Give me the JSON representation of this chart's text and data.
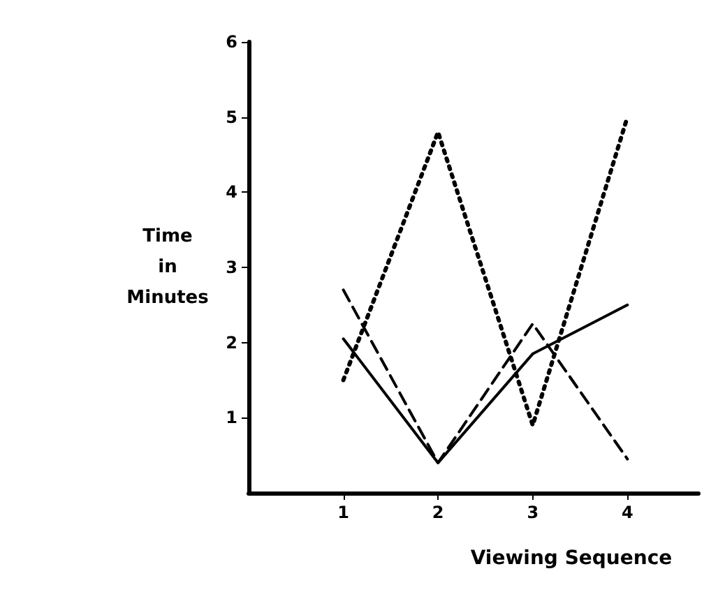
{
  "chart_data": {
    "type": "line",
    "xlabel": "Viewing Sequence",
    "ylabel": "Time\nin\nMinutes",
    "x": [
      1,
      2,
      3,
      4
    ],
    "xlim": [
      0,
      4.75
    ],
    "xticks": [
      1,
      2,
      3,
      4
    ],
    "ylim": [
      0,
      6
    ],
    "yticks": [
      1,
      2,
      3,
      4,
      5,
      6
    ],
    "marker": "none",
    "grid": false,
    "series": [
      {
        "color": "#000000",
        "line_style": "solid",
        "values": [
          2.05,
          0.4,
          1.85,
          2.5
        ]
      },
      {
        "color": "#000000",
        "line_style": "dashed",
        "values": [
          2.7,
          0.4,
          2.25,
          0.45
        ]
      },
      {
        "color": "#000000",
        "line_style": "dotted",
        "values": [
          1.5,
          4.8,
          0.9,
          5.0
        ]
      }
    ]
  }
}
